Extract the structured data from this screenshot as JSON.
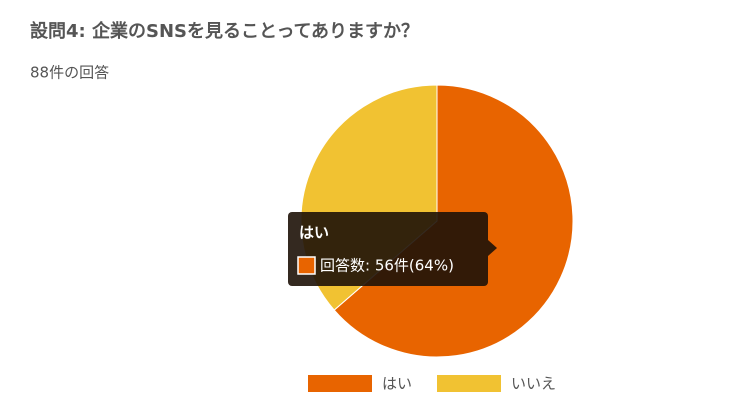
{
  "chart_data": {
    "type": "pie",
    "title": "設問4: 企業のSNSを見ることってありますか？",
    "subtitle": "88件の回答",
    "categories": [
      "はい",
      "いいえ"
    ],
    "values": [
      56,
      32
    ],
    "colors": [
      "#e86400",
      "#f1c232"
    ],
    "legend": "bottom",
    "tooltip": "回答数: 56件(64%)"
  }
}
